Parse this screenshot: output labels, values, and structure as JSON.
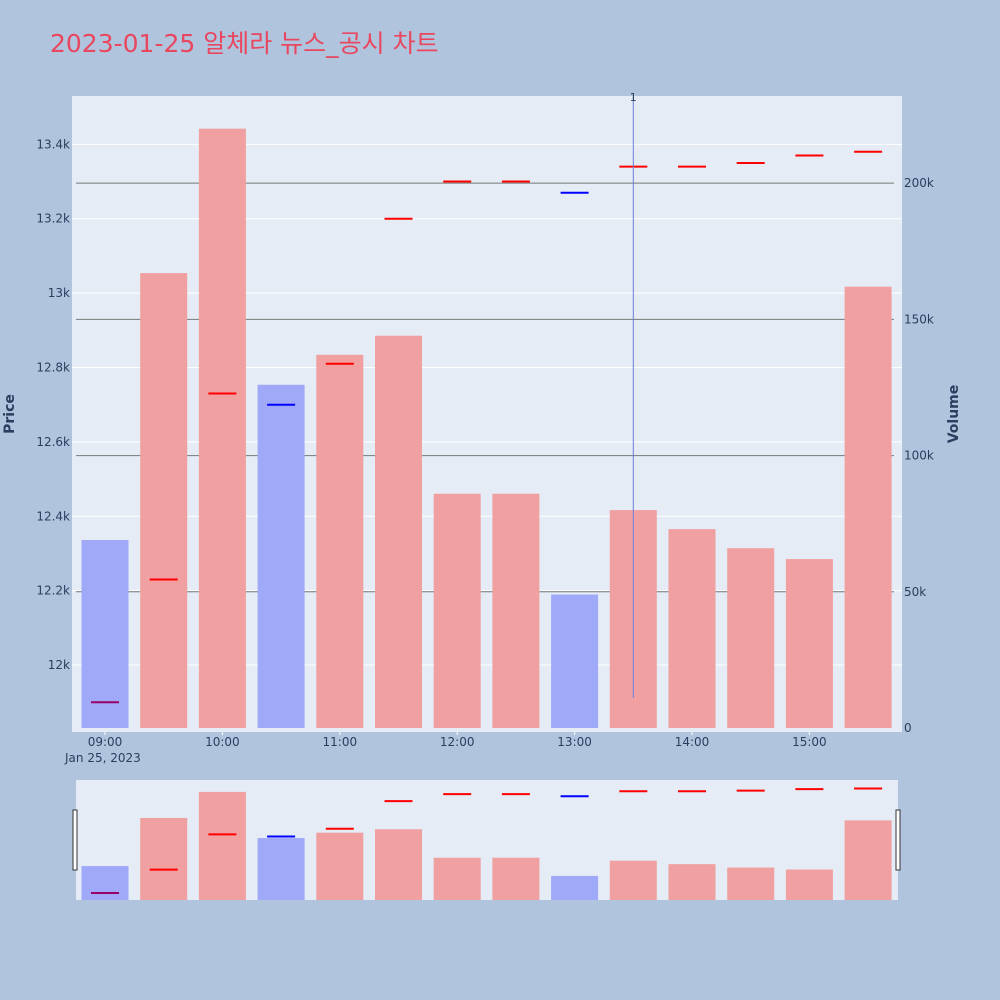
{
  "title": "2023-01-25 알체라 뉴스_공시 차트",
  "colors": {
    "up_bar": "#f0a0a0",
    "down_bar": "#a0a8f8",
    "up_tick": "#ff0000",
    "down_tick": "#0000ff",
    "plot_bg": "#e5ecf6",
    "page_bg": "#b0c4de"
  },
  "chart_data": {
    "type": "bar",
    "y_axis_title": "Price",
    "y2_axis_title": "Volume",
    "date_label": "Jan 25, 2023",
    "x_tick_labels": [
      "09:00",
      "10:00",
      "11:00",
      "12:00",
      "13:00",
      "14:00",
      "15:00"
    ],
    "price_tick_labels": [
      "12k",
      "12.2k",
      "12.4k",
      "12.6k",
      "12.8k",
      "13k",
      "13.2k",
      "13.4k"
    ],
    "volume_tick_labels": [
      "0",
      "50k",
      "100k",
      "150k",
      "200k"
    ],
    "price_range": [
      11820,
      13530
    ],
    "volume_range": [
      0,
      232000
    ],
    "annotation_label": "1",
    "annotation_time": "13:30",
    "bars": [
      {
        "time": "09:00",
        "volume": 69000,
        "price": 11900,
        "dir": "mixed"
      },
      {
        "time": "09:30",
        "volume": 167000,
        "price": 12230,
        "dir": "up"
      },
      {
        "time": "10:00",
        "volume": 220000,
        "price": 12730,
        "dir": "up"
      },
      {
        "time": "10:30",
        "volume": 126000,
        "price": 12700,
        "dir": "down"
      },
      {
        "time": "11:00",
        "volume": 137000,
        "price": 12810,
        "dir": "up"
      },
      {
        "time": "11:30",
        "volume": 144000,
        "price": 13200,
        "dir": "up"
      },
      {
        "time": "12:00",
        "volume": 86000,
        "price": 13300,
        "dir": "up"
      },
      {
        "time": "12:30",
        "volume": 86000,
        "price": 13300,
        "dir": "up"
      },
      {
        "time": "13:00",
        "volume": 49000,
        "price": 13270,
        "dir": "down"
      },
      {
        "time": "13:30",
        "volume": 80000,
        "price": 13340,
        "dir": "up"
      },
      {
        "time": "14:00",
        "volume": 73000,
        "price": 13340,
        "dir": "up"
      },
      {
        "time": "14:30",
        "volume": 66000,
        "price": 13350,
        "dir": "up"
      },
      {
        "time": "15:00",
        "volume": 62000,
        "price": 13370,
        "dir": "up"
      },
      {
        "time": "15:30",
        "volume": 162000,
        "price": 13380,
        "dir": "up"
      }
    ]
  }
}
